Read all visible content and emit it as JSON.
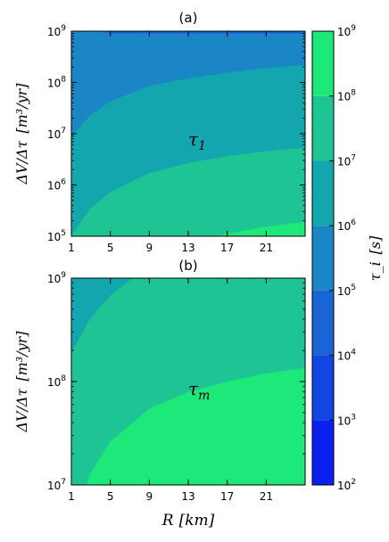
{
  "chart_data": [
    {
      "type": "heatmap",
      "panel_label": "(a)",
      "xlabel": "",
      "ylabel_math": "ΔV/Δτ",
      "ylabel_unit": "[m³/yr]",
      "xlim": [
        1,
        25
      ],
      "ylim_log10": [
        5,
        9
      ],
      "y_scale": "log",
      "x_ticks": [
        "1",
        "5",
        "9",
        "13",
        "17",
        "21"
      ],
      "y_ticks": [
        {
          "base": "10",
          "exp": "5"
        },
        {
          "base": "10",
          "exp": "6"
        },
        {
          "base": "10",
          "exp": "7"
        },
        {
          "base": "10",
          "exp": "8"
        },
        {
          "base": "10",
          "exp": "9"
        }
      ],
      "annotation": {
        "symbol": "τ",
        "sub": "1"
      },
      "contour_levels_log10": [
        4,
        5,
        6,
        7,
        8
      ],
      "regions_log10_tau": [
        {
          "range": [
            4,
            5
          ],
          "color": "#1a65d6"
        },
        {
          "range": [
            5,
            6
          ],
          "color": "#1b86c6"
        },
        {
          "range": [
            6,
            7
          ],
          "color": "#14a6ae"
        },
        {
          "range": [
            7,
            8
          ],
          "color": "#1ec493"
        },
        {
          "range": [
            8,
            9
          ],
          "color": "#1de87a"
        }
      ],
      "boundaries_log10_V": [
        {
          "level": 5,
          "points": [
            [
              1,
              9.22
            ],
            [
              3,
              9.08
            ],
            [
              5,
              8.95
            ]
          ]
        },
        {
          "level": 6,
          "points": [
            [
              1,
              6.96
            ],
            [
              3,
              7.37
            ],
            [
              5,
              7.63
            ],
            [
              9,
              7.93
            ],
            [
              13,
              8.08
            ],
            [
              17,
              8.19
            ],
            [
              21,
              8.28
            ],
            [
              25,
              8.34
            ]
          ]
        },
        {
          "level": 7,
          "points": [
            [
              1,
              5.02
            ],
            [
              3,
              5.55
            ],
            [
              5,
              5.86
            ],
            [
              9,
              6.23
            ],
            [
              13,
              6.43
            ],
            [
              17,
              6.56
            ],
            [
              21,
              6.66
            ],
            [
              25,
              6.73
            ]
          ]
        },
        {
          "level": 8,
          "points": [
            [
              15,
              4.95
            ],
            [
              17,
              5.05
            ],
            [
              21,
              5.19
            ],
            [
              25,
              5.28
            ]
          ]
        }
      ]
    },
    {
      "type": "heatmap",
      "panel_label": "(b)",
      "xlabel_math": "R",
      "xlabel_unit": "[km]",
      "ylabel_math": "ΔV/Δτ",
      "ylabel_unit": "[m³/yr]",
      "xlim": [
        1,
        25
      ],
      "ylim_log10": [
        7,
        9
      ],
      "y_scale": "log",
      "x_ticks": [
        "1",
        "5",
        "9",
        "13",
        "17",
        "21"
      ],
      "y_ticks": [
        {
          "base": "10",
          "exp": "7"
        },
        {
          "base": "10",
          "exp": "8"
        },
        {
          "base": "10",
          "exp": "9"
        }
      ],
      "annotation": {
        "symbol": "τ",
        "sub": "m"
      },
      "contour_levels_log10": [
        7,
        8
      ],
      "regions_log10_tau": [
        {
          "range": [
            6,
            7
          ],
          "color": "#14a6ae"
        },
        {
          "range": [
            7,
            8
          ],
          "color": "#1ec493"
        },
        {
          "range": [
            8,
            9
          ],
          "color": "#1de87a"
        }
      ],
      "boundaries_log10_V": [
        {
          "level": 7,
          "points": [
            [
              1,
              8.28
            ],
            [
              3,
              8.62
            ],
            [
              5,
              8.83
            ],
            [
              7,
              8.98
            ],
            [
              8,
              9.05
            ]
          ]
        },
        {
          "level": 8,
          "points": [
            [
              2.5,
              6.98
            ],
            [
              3,
              7.12
            ],
            [
              5,
              7.42
            ],
            [
              9,
              7.74
            ],
            [
              13,
              7.9
            ],
            [
              17,
              8.0
            ],
            [
              21,
              8.08
            ],
            [
              25,
              8.13
            ]
          ]
        }
      ]
    }
  ],
  "colorbar": {
    "label_math": "τ_i",
    "label_unit": "[s]",
    "range_log10": [
      2,
      9
    ],
    "ticks": [
      {
        "base": "10",
        "exp": "9"
      },
      {
        "base": "10",
        "exp": "8"
      },
      {
        "base": "10",
        "exp": "7"
      },
      {
        "base": "10",
        "exp": "6"
      },
      {
        "base": "10",
        "exp": "5"
      },
      {
        "base": "10",
        "exp": "4"
      },
      {
        "base": "10",
        "exp": "3"
      },
      {
        "base": "10",
        "exp": "2"
      }
    ],
    "bands": [
      {
        "range": [
          2,
          3
        ],
        "color": "#0b1fef"
      },
      {
        "range": [
          3,
          4
        ],
        "color": "#1246e0"
      },
      {
        "range": [
          4,
          5
        ],
        "color": "#1a65d6"
      },
      {
        "range": [
          5,
          6
        ],
        "color": "#1b86c6"
      },
      {
        "range": [
          6,
          7
        ],
        "color": "#14a6ae"
      },
      {
        "range": [
          7,
          8
        ],
        "color": "#1ec493"
      },
      {
        "range": [
          8,
          9
        ],
        "color": "#1de87a"
      }
    ]
  }
}
